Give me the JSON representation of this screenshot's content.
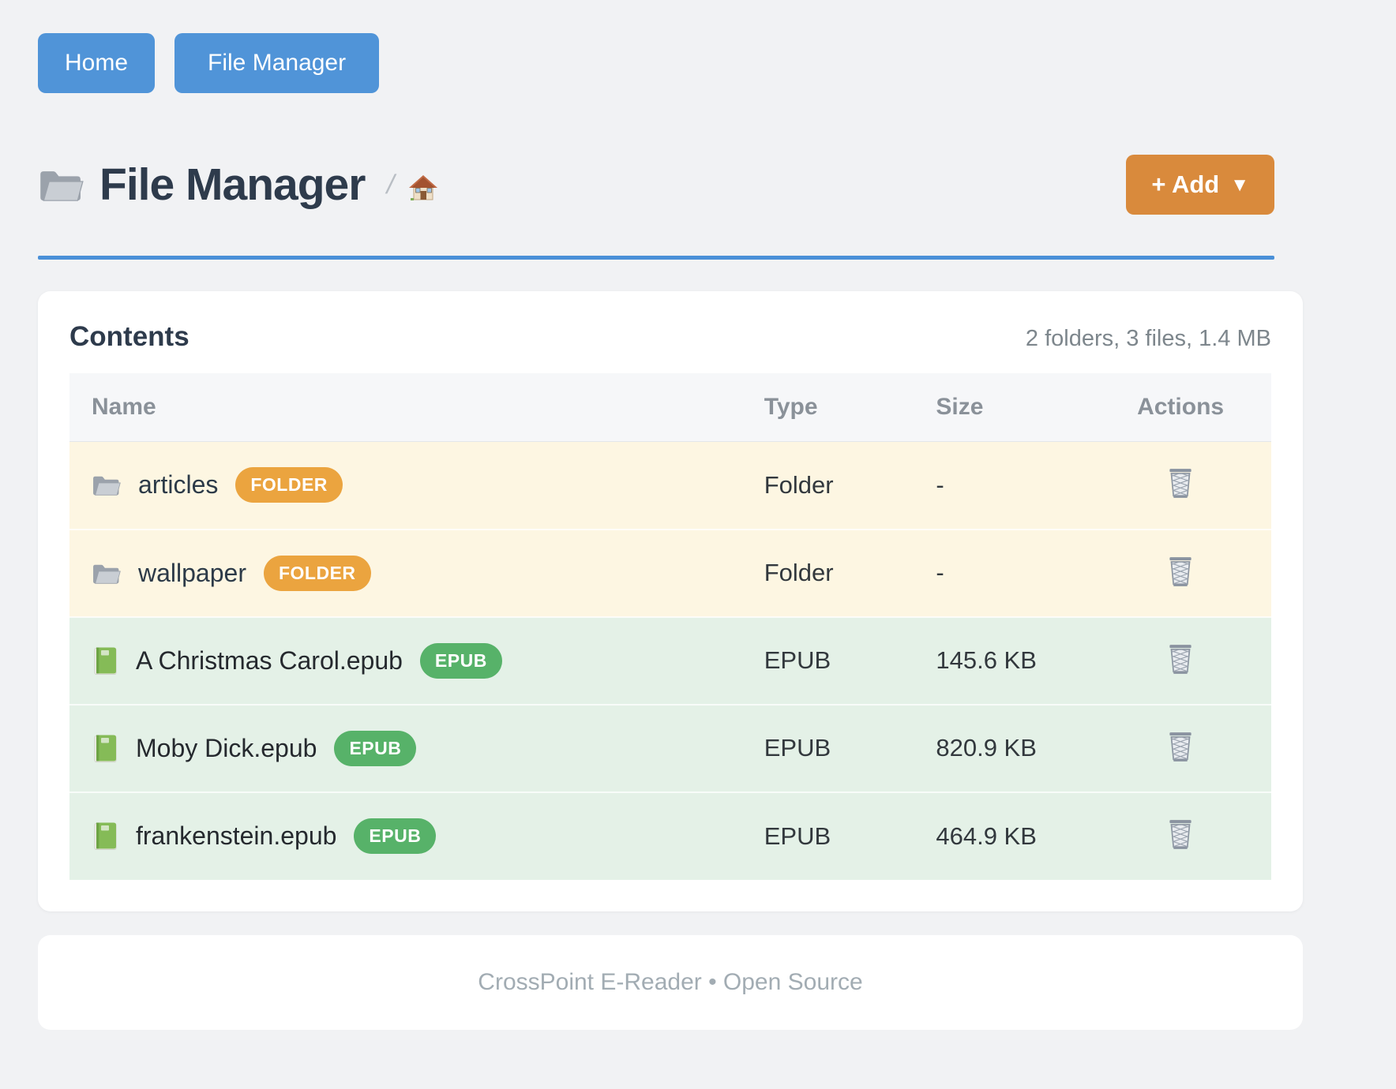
{
  "nav": {
    "home_label": "Home",
    "file_manager_label": "File Manager"
  },
  "header": {
    "title": "File Manager",
    "separator": "/",
    "add_label": "+ Add",
    "add_caret": "▼"
  },
  "card": {
    "title": "Contents",
    "summary": "2 folders, 3 files, 1.4 MB",
    "table": {
      "headers": [
        "Name",
        "Type",
        "Size",
        "Actions"
      ],
      "rows": [
        {
          "name": "articles",
          "kind": "folder",
          "badge": "FOLDER",
          "type": "Folder",
          "size": "-"
        },
        {
          "name": "wallpaper",
          "kind": "folder",
          "badge": "FOLDER",
          "type": "Folder",
          "size": "-"
        },
        {
          "name": "A Christmas Carol.epub",
          "kind": "epub",
          "badge": "EPUB",
          "type": "EPUB",
          "size": "145.6 KB"
        },
        {
          "name": "Moby Dick.epub",
          "kind": "epub",
          "badge": "EPUB",
          "type": "EPUB",
          "size": "820.9 KB"
        },
        {
          "name": "frankenstein.epub",
          "kind": "epub",
          "badge": "EPUB",
          "type": "EPUB",
          "size": "464.9 KB"
        }
      ]
    }
  },
  "footer": {
    "text": "CrossPoint E-Reader • Open Source"
  },
  "icons": {
    "title_icon": "folder-icon",
    "breadcrumb_icon": "home-icon",
    "folder_row_icon": "folder-icon",
    "epub_row_icon": "book-icon",
    "action_icon": "trash-icon",
    "add_caret_icon": "caret-down-icon"
  },
  "colors": {
    "accent_blue": "#5094d8",
    "divider_blue": "#4a90d8",
    "accent_orange": "#d98a3c",
    "badge_folder": "#eba43f",
    "badge_epub": "#57b269",
    "row_folder_bg": "#fdf6e2",
    "row_epub_bg": "#e4f1e7",
    "page_bg": "#f1f2f4"
  }
}
